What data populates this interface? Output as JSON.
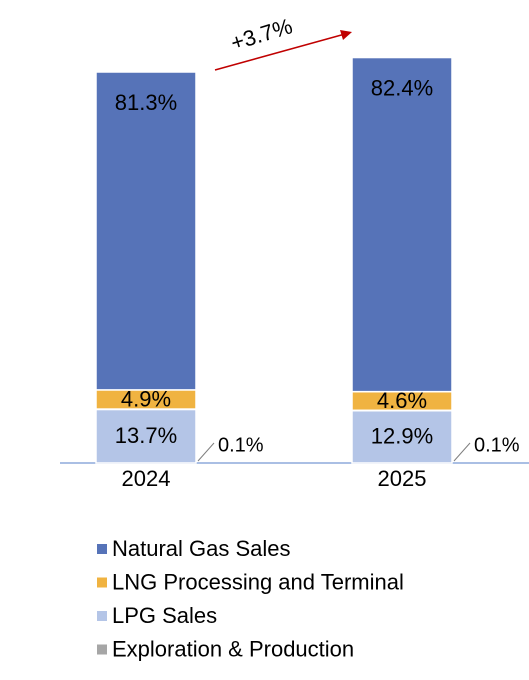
{
  "chart_data": {
    "type": "stacked_bar",
    "categories": [
      "2024",
      "2025"
    ],
    "series": [
      {
        "name": "LPG Sales",
        "color": "#b4c5e7",
        "values": [
          13.7,
          12.9
        ],
        "value_labels": [
          "13.7%",
          "12.9%"
        ]
      },
      {
        "name": "Exploration & Production",
        "color": "#a6a6a6",
        "values": [
          0.1,
          0.1
        ],
        "value_labels": [
          "0.1%",
          "0.1%"
        ]
      },
      {
        "name": "LNG Processing and Terminal",
        "color": "#f0b341",
        "values": [
          4.9,
          4.6
        ],
        "value_labels": [
          "4.9%",
          "4.6%"
        ]
      },
      {
        "name": "Natural Gas Sales",
        "color": "#5673b8",
        "values": [
          81.3,
          82.4
        ],
        "value_labels": [
          "81.3%",
          "82.4%"
        ]
      }
    ],
    "legend_order": [
      3,
      2,
      0,
      1
    ],
    "annotation": {
      "value": 3.7,
      "label": "+3.7%",
      "color": "#c00000"
    }
  }
}
